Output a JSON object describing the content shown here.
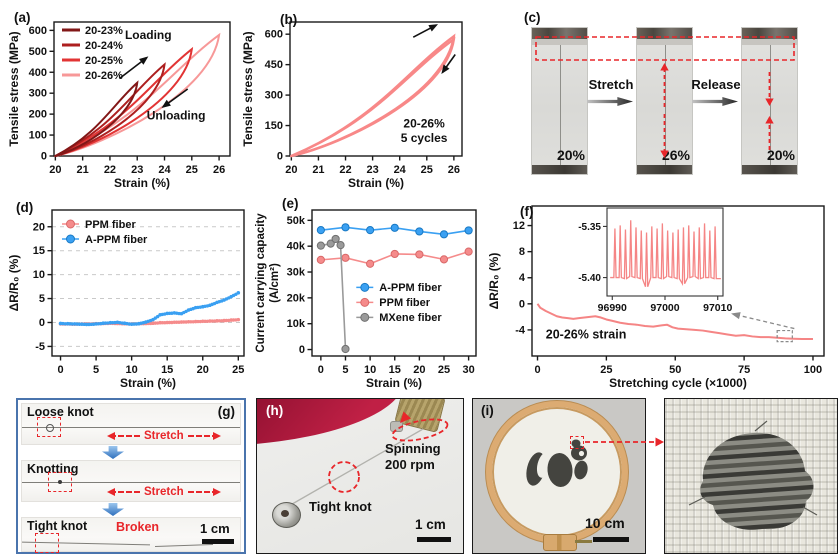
{
  "figure": {
    "colors": {
      "accent_red": "#e8262a",
      "curve_pink": "#f58585",
      "series_blue": "#3aa0f2",
      "series_pink": "#f58b8b",
      "series_gray": "#909090",
      "panel_g_border": "#4a74ad"
    },
    "panels": {
      "a": {
        "label": "(a)"
      },
      "b": {
        "label": "(b)"
      },
      "c": {
        "label": "(c)",
        "photos": [
          {
            "pct": "20%"
          },
          {
            "pct": "26%"
          },
          {
            "pct": "20%"
          }
        ],
        "arrows": [
          {
            "label": "Stretch"
          },
          {
            "label": "Release"
          }
        ]
      },
      "d": {
        "label": "(d)"
      },
      "e": {
        "label": "(e)"
      },
      "f": {
        "label": "(f)"
      },
      "g": {
        "label": "(g)",
        "rows": [
          {
            "title": "Loose knot",
            "stretch": "Stretch"
          },
          {
            "title": "Knotting",
            "stretch": "Stretch"
          },
          {
            "title": "Tight knot",
            "broken": "Broken",
            "scale": "1 cm"
          }
        ]
      },
      "h": {
        "label": "(h)",
        "spinning_line1": "Spinning",
        "spinning_line2": "200 rpm",
        "knot": "Tight knot",
        "scale": "1 cm"
      },
      "i": {
        "label": "(i)",
        "scale": "10 cm"
      }
    }
  },
  "chart_data": [
    {
      "id": "a",
      "type": "line",
      "xlabel": "Strain (%)",
      "ylabel": "Tensile stress (MPa)",
      "xlim": [
        19.95,
        26.4
      ],
      "ylim": [
        0,
        640
      ],
      "xticks": [
        20,
        21,
        22,
        23,
        24,
        25,
        26
      ],
      "yticks": [
        0,
        100,
        200,
        300,
        400,
        500,
        600
      ],
      "legend_position": "top-left",
      "series": [
        {
          "name": "20-23%",
          "color": "#821717",
          "loop": {
            "x0": 20,
            "x1": 23,
            "peak": 350
          }
        },
        {
          "name": "20-24%",
          "color": "#ad1f1f",
          "loop": {
            "x0": 20,
            "x1": 24,
            "peak": 437
          }
        },
        {
          "name": "20-25%",
          "color": "#e23434",
          "loop": {
            "x0": 20,
            "x1": 25,
            "peak": 510
          }
        },
        {
          "name": "20-26%",
          "color": "#f79898",
          "loop": {
            "x0": 20,
            "x1": 26,
            "peak": 578
          }
        }
      ],
      "annotations": [
        {
          "text": "Loading",
          "x": 22.55,
          "y": 560,
          "anchor": "start"
        },
        {
          "text": "Unloading",
          "x": 23.35,
          "y": 175,
          "anchor": "start"
        }
      ],
      "arrows": [
        {
          "x1": 22.35,
          "y1": 370,
          "x2": 23.35,
          "y2": 470
        },
        {
          "x1": 24.85,
          "y1": 320,
          "x2": 23.95,
          "y2": 235
        }
      ]
    },
    {
      "id": "b",
      "type": "line",
      "xlabel": "Strain (%)",
      "ylabel": "Tensile stress (MPa)",
      "xlim": [
        19.95,
        26.3
      ],
      "ylim": [
        0,
        660
      ],
      "xticks": [
        20,
        21,
        22,
        23,
        24,
        25,
        26
      ],
      "yticks": [
        0,
        150,
        300,
        450,
        600
      ],
      "series": [
        {
          "name": "20-26% 5 cycles",
          "color": "#f88888",
          "width": 2.4,
          "loop": {
            "x0": 20,
            "x1": 26,
            "peak": 590
          }
        },
        {
          "name": "cycle-band",
          "color": "#f88888",
          "width": 2.4,
          "loop": {
            "x0": 20,
            "x1": 26,
            "peak": 575
          }
        }
      ],
      "annotations": [
        {
          "text": "20-26%",
          "x": 24.9,
          "y": 140,
          "anchor": "middle"
        },
        {
          "text": "5 cycles",
          "x": 24.9,
          "y": 68,
          "anchor": "middle"
        }
      ],
      "arrows": [
        {
          "x1": 24.5,
          "y1": 585,
          "x2": 25.35,
          "y2": 645
        },
        {
          "x1": 26.05,
          "y1": 500,
          "x2": 25.58,
          "y2": 412
        }
      ]
    },
    {
      "id": "d",
      "type": "scatter",
      "xlabel": "Strain (%)",
      "ylabel": "ΔR/R₀ (%)",
      "xlim": [
        -1.2,
        25.8
      ],
      "ylim": [
        -7,
        23.5
      ],
      "xticks": [
        0,
        5,
        10,
        15,
        20,
        25
      ],
      "yticks": [
        -5,
        0,
        5,
        10,
        15,
        20
      ],
      "grid": "dashed-horizontal",
      "legend_position": "top-left",
      "series": [
        {
          "name": "PPM fiber",
          "color": "#f58b8b",
          "edge": "#d96868",
          "x": [
            0,
            1,
            2,
            3,
            4,
            5,
            6,
            7,
            8,
            9,
            10,
            11,
            12,
            13,
            14,
            15,
            16,
            17,
            18,
            19,
            20,
            21,
            22,
            23,
            24,
            25
          ],
          "y": [
            -0.3,
            -0.3,
            -0.35,
            -0.3,
            -0.3,
            -0.25,
            -0.2,
            -0.15,
            -0.2,
            -0.25,
            -0.3,
            -0.25,
            -0.2,
            -0.15,
            -0.05,
            0.0,
            0.05,
            0.1,
            0.15,
            0.2,
            0.25,
            0.3,
            0.35,
            0.4,
            0.5,
            0.6
          ]
        },
        {
          "name": "A-PPM fiber",
          "color": "#3aa0f2",
          "edge": "#1879c4",
          "x": [
            0,
            1,
            2,
            3,
            4,
            5,
            6,
            7,
            8,
            9,
            10,
            11,
            12,
            13,
            14,
            15,
            16,
            17,
            18,
            19,
            20,
            21,
            22,
            23,
            24,
            25
          ],
          "y": [
            -0.2,
            -0.25,
            -0.3,
            -0.35,
            -0.4,
            -0.3,
            -0.15,
            -0.05,
            0.05,
            -0.15,
            -0.35,
            -0.25,
            0.1,
            0.6,
            1.6,
            1.9,
            2.0,
            1.85,
            2.6,
            3.1,
            3.3,
            3.6,
            4.2,
            4.7,
            5.4,
            6.2
          ]
        }
      ]
    },
    {
      "id": "e",
      "type": "line",
      "xlabel": "Strain (%)",
      "ylabel_lines": [
        "Current carrying capacity",
        "(A/cm²)"
      ],
      "xlim": [
        -1.8,
        31.5
      ],
      "ylim": [
        -2500,
        54000
      ],
      "xticks": [
        0,
        5,
        10,
        15,
        20,
        25,
        30
      ],
      "yticks": [
        0,
        10000,
        20000,
        30000,
        40000,
        50000
      ],
      "ytick_labels": [
        "0",
        "10k",
        "20k",
        "30k",
        "40k",
        "50k"
      ],
      "legend_position": "inside-right",
      "series": [
        {
          "name": "A-PPM fiber",
          "color": "#3aa0f2",
          "edge": "#1879c4",
          "x": [
            0,
            5,
            10,
            15,
            20,
            25,
            30
          ],
          "y": [
            46200,
            47300,
            46200,
            47100,
            45700,
            44600,
            46100
          ]
        },
        {
          "name": "PPM fiber",
          "color": "#f58b8b",
          "edge": "#d96868",
          "x": [
            0,
            5,
            10,
            15,
            20,
            25,
            30
          ],
          "y": [
            34700,
            35500,
            33200,
            37000,
            36800,
            34900,
            37900
          ]
        },
        {
          "name": "MXene fiber",
          "color": "#9a9a9a",
          "edge": "#6f6f6f",
          "x": [
            0,
            2,
            3,
            4,
            5
          ],
          "y": [
            40200,
            41000,
            42800,
            40400,
            200
          ]
        }
      ]
    },
    {
      "id": "f",
      "type": "line",
      "xlabel": "Stretching cycle (×1000)",
      "ylabel": "ΔR/R₀ (%)",
      "xlim": [
        -2,
        104
      ],
      "ylim": [
        -8,
        15
      ],
      "xticks": [
        0,
        25,
        50,
        75,
        100
      ],
      "yticks": [
        -4,
        0,
        4,
        8,
        12
      ],
      "series": [
        {
          "name": "20-26% strain",
          "color": "#f58585",
          "width": 2,
          "x": [
            0,
            1,
            3,
            5,
            7,
            9,
            11,
            13,
            15,
            17,
            19,
            21,
            23,
            25,
            27,
            30,
            33,
            36,
            39,
            42,
            45,
            47,
            49,
            51,
            54,
            57,
            60,
            63,
            66,
            69,
            72,
            75,
            78,
            81,
            84,
            87,
            90,
            93,
            96,
            100
          ],
          "y": [
            0,
            -0.6,
            -1.1,
            -1.5,
            -1.9,
            -2.1,
            -2.2,
            -2.3,
            -2.2,
            -2.1,
            -2.0,
            -1.9,
            -2.1,
            -2.4,
            -2.6,
            -2.9,
            -3.1,
            -3.2,
            -3.4,
            -3.5,
            -3.3,
            -3.2,
            -3.6,
            -3.8,
            -3.9,
            -4.0,
            -4.1,
            -4.3,
            -4.5,
            -4.7,
            -4.9,
            -4.8,
            -5.0,
            -5.1,
            -5.1,
            -5.2,
            -5.3,
            -5.35,
            -5.4,
            -5.4
          ]
        }
      ],
      "annotations": [
        {
          "text": "20-26% strain",
          "x": 3,
          "y": -5.3,
          "anchor": "start",
          "size": 12.5
        }
      ],
      "link_box": {
        "x": [
          87,
          92.5
        ],
        "y": [
          -5.8,
          -4.1
        ]
      },
      "inset": {
        "xlim": [
          96989,
          97011
        ],
        "ylim": [
          -5.418,
          -5.332
        ],
        "xticks": [
          96990,
          97000,
          97010
        ],
        "yticks": [
          -5.35,
          -5.4
        ],
        "color": "#f58585",
        "base": [
          -5.4,
          -5.4,
          -5.401,
          -5.399,
          -5.4,
          -5.401,
          -5.409,
          -5.4,
          -5.4,
          -5.401,
          -5.399,
          -5.4,
          -5.401,
          -5.406,
          -5.4,
          -5.399,
          -5.401,
          -5.4,
          -5.4,
          -5.401
        ],
        "peaks": [
          -5.352,
          -5.349,
          -5.353,
          -5.344,
          -5.351,
          -5.354,
          -5.356,
          -5.35,
          -5.352,
          -5.347,
          -5.354,
          -5.356,
          -5.353,
          -5.351,
          -5.349,
          -5.355,
          -5.351,
          -5.347,
          -5.354,
          -5.35
        ]
      }
    }
  ]
}
